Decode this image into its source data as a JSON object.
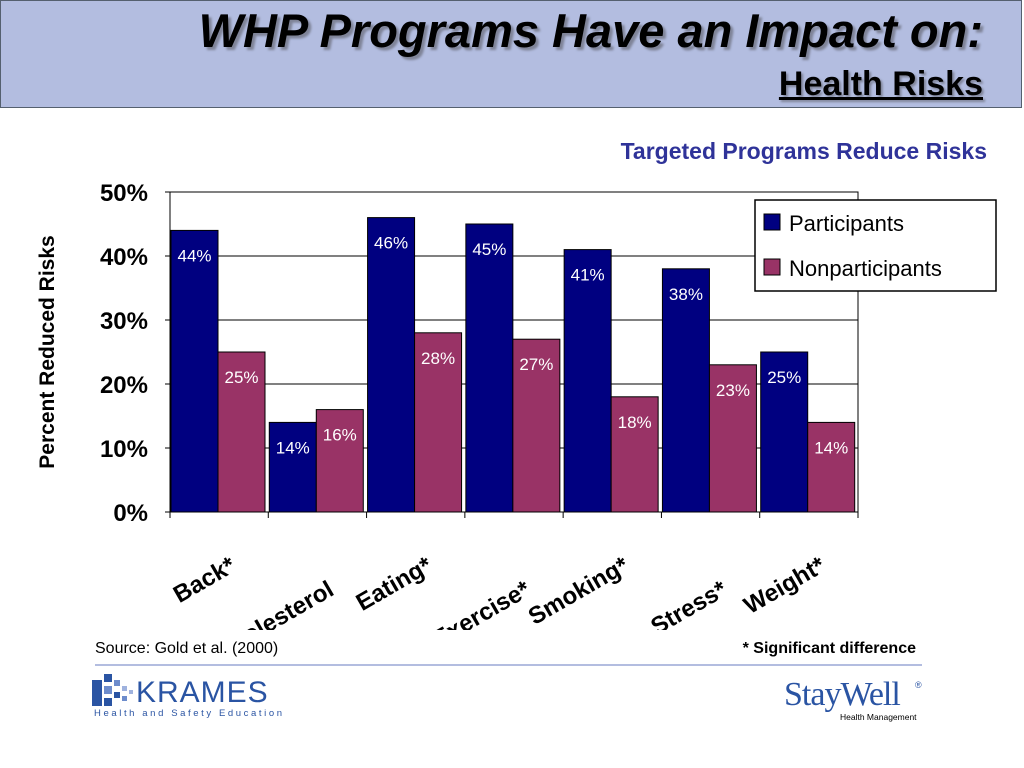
{
  "header": {
    "title": "WHP Programs Have an Impact on:",
    "subtitle": "Health Risks"
  },
  "chart_heading": "Targeted Programs Reduce Risks",
  "chart_data": {
    "type": "bar",
    "categories": [
      "Back*",
      "Cholesterol",
      "Eating*",
      "Exercise*",
      "Smoking*",
      "Stress*",
      "Weight*"
    ],
    "series": [
      {
        "name": "Participants",
        "values": [
          44,
          14,
          46,
          45,
          41,
          38,
          25
        ],
        "labels": [
          "44%",
          "14%",
          "46%",
          "45%",
          "41%",
          "38%",
          "25%"
        ],
        "color": "#000080"
      },
      {
        "name": "Nonparticipants",
        "values": [
          25,
          16,
          28,
          27,
          18,
          23,
          14
        ],
        "labels": [
          "25%",
          "16%",
          "28%",
          "27%",
          "18%",
          "23%",
          "14%"
        ],
        "color": "#993366"
      }
    ],
    "ylabel": "Percent Reduced Risks",
    "xlabel": "",
    "ylim": [
      0,
      50
    ],
    "yticks": [
      "0%",
      "10%",
      "20%",
      "30%",
      "40%",
      "50%"
    ],
    "grid": true,
    "legend_position": "top-right"
  },
  "footer": {
    "source": "Source: Gold et al. (2000)",
    "significance_note": "* Significant difference"
  },
  "logos": {
    "krames_name": "KRAMES",
    "krames_tagline": "Health and Safety Education",
    "staywell_name": "StayWell",
    "staywell_reg": "®",
    "staywell_tagline": "Health Management"
  }
}
